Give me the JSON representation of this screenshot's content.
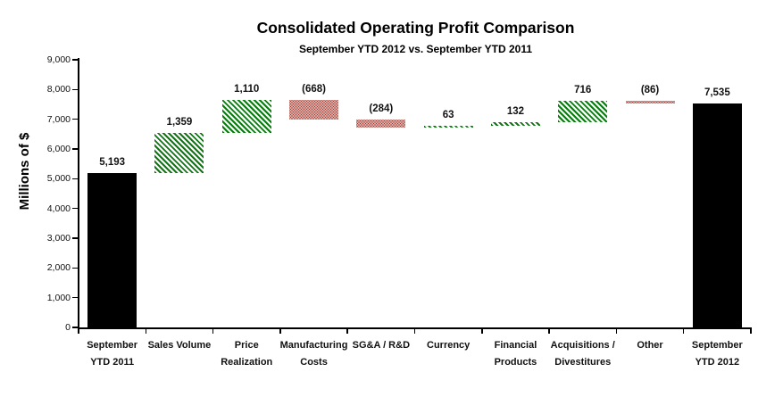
{
  "chart_data": {
    "type": "waterfall-bar",
    "title": "Consolidated Operating Profit Comparison",
    "subtitle": "September YTD 2012 vs. September YTD 2011",
    "ylabel": "Millions of $",
    "ylim": [
      0,
      9000
    ],
    "ytick_interval": 1000,
    "ytick_labels": [
      "0",
      "1,000",
      "2,000",
      "3,000",
      "4,000",
      "5,000",
      "6,000",
      "7,000",
      "8,000",
      "9,000"
    ],
    "grid": false,
    "legend": "none",
    "categories": [
      {
        "label": [
          "September",
          "YTD 2011"
        ],
        "value": 5193,
        "display": "5,193",
        "kind": "total"
      },
      {
        "label": [
          "Sales Volume"
        ],
        "value": 1359,
        "display": "1,359",
        "kind": "increase"
      },
      {
        "label": [
          "Price",
          "Realization"
        ],
        "value": 1110,
        "display": "1,110",
        "kind": "increase"
      },
      {
        "label": [
          "Manufacturing",
          "Costs"
        ],
        "value": -668,
        "display": "(668)",
        "kind": "decrease"
      },
      {
        "label": [
          "SG&A / R&D"
        ],
        "value": -284,
        "display": "(284)",
        "kind": "decrease"
      },
      {
        "label": [
          "Currency"
        ],
        "value": 63,
        "display": "63",
        "kind": "increase"
      },
      {
        "label": [
          "Financial",
          "Products"
        ],
        "value": 132,
        "display": "132",
        "kind": "increase"
      },
      {
        "label": [
          "Acquisitions /",
          "Divestitures"
        ],
        "value": 716,
        "display": "716",
        "kind": "increase"
      },
      {
        "label": [
          "Other"
        ],
        "value": -86,
        "display": "(86)",
        "kind": "decrease"
      },
      {
        "label": [
          "September",
          "YTD 2012"
        ],
        "value": 7535,
        "display": "7,535",
        "kind": "total"
      }
    ],
    "colors": {
      "total_bar": "#000000",
      "increase_hatch": "#0b7a10",
      "decrease_dot": "#a23429",
      "axis": "#000000",
      "text": "#111111"
    }
  }
}
